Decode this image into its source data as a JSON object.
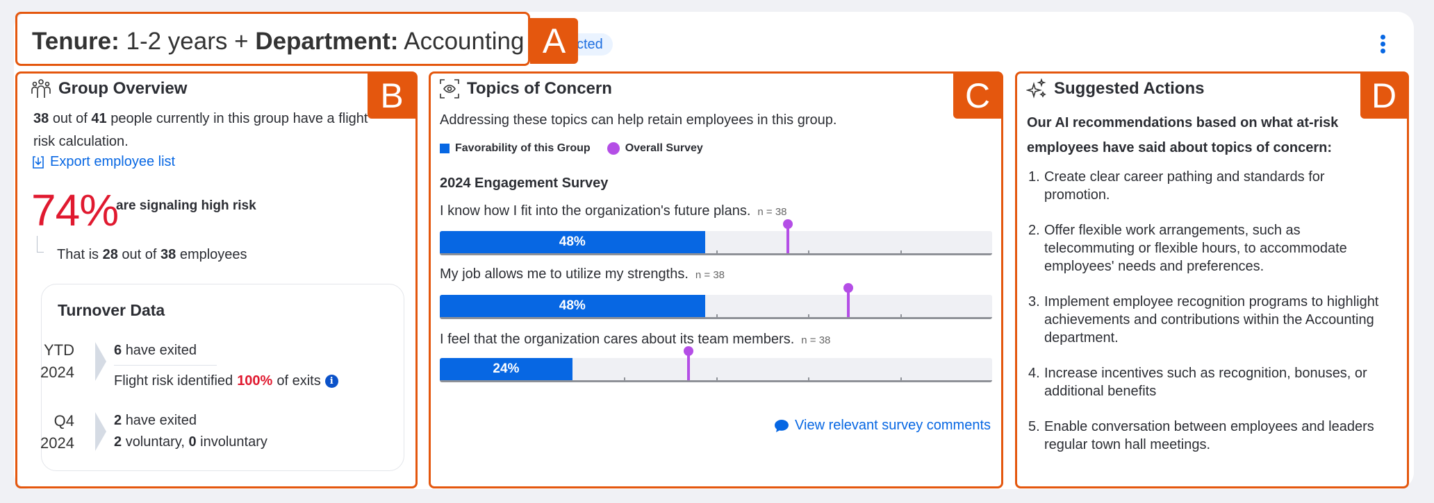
{
  "header": {
    "tenure_label": "Tenure:",
    "tenure_value": "1-2 years",
    "plus": "+",
    "department_label": "Department:",
    "department_value": "Accounting",
    "badge": "cted",
    "more_icon": "kebab-vertical-icon"
  },
  "annotations": {
    "a": "A",
    "b": "B",
    "c": "C",
    "d": "D",
    "color": "#e4570e"
  },
  "group_overview": {
    "title": "Group Overview",
    "icon": "people-group-icon",
    "count_with_calc": "38",
    "out_of": "out of",
    "total": "41",
    "summary_rest": "people currently in this group have a flight",
    "summary_line2": "risk calculation.",
    "export_label": "Export employee list",
    "risk_percent": "74%",
    "risk_text": "are signaling high risk",
    "that_is": "That is",
    "risk_count": "28",
    "risk_out_of": "out of",
    "risk_total": "38",
    "employees": "employees",
    "turnover": {
      "title": "Turnover Data",
      "ytd": {
        "period_a": "YTD",
        "period_b": "2024",
        "exited_count": "6",
        "exited_text": "have exited",
        "flight_prefix": "Flight risk identified",
        "flight_pct": "100%",
        "flight_suffix": "of exits"
      },
      "q4": {
        "period_a": "Q4",
        "period_b": "2024",
        "exited_count": "2",
        "exited_text": "have exited",
        "voluntary": "2",
        "voluntary_text": "voluntary,",
        "involuntary": "0",
        "involuntary_text": "involuntary"
      }
    }
  },
  "topics": {
    "title": "Topics of Concern",
    "icon": "eye-focus-icon",
    "description": "Addressing these topics can help retain employees in this group.",
    "legend": {
      "group": "Favorability of this Group",
      "overall": "Overall Survey"
    },
    "survey_title": "2024 Engagement Survey",
    "items": [
      {
        "question": "I know how I fit into the organization's future plans.",
        "n": "n = 38",
        "group_label": "48%",
        "group_value": 48,
        "overall_value": 63
      },
      {
        "question": "My job allows me to utilize my strengths.",
        "n": "n = 38",
        "group_label": "48%",
        "group_value": 48,
        "overall_value": 74
      },
      {
        "question": "I feel that the organization cares about its team members.",
        "n": "n = 38",
        "group_label": "24%",
        "group_value": 24,
        "overall_value": 45
      }
    ],
    "comments_link": "View relevant survey comments",
    "colors": {
      "group": "#0767e3",
      "overall": "#b44ee6"
    }
  },
  "actions": {
    "title": "Suggested Actions",
    "icon": "sparkles-icon",
    "intro_line1": "Our AI recommendations based on what at-risk",
    "intro_line2": "employees have said about topics of concern:",
    "items": [
      {
        "num": "1.",
        "text": "Create clear career pathing and standards for promotion."
      },
      {
        "num": "2.",
        "text": "Offer flexible work arrangements, such as telecommuting or flexible hours, to accommodate employees' needs and preferences."
      },
      {
        "num": "3.",
        "text": "Implement employee recognition programs to highlight achievements and contributions within the Accounting department."
      },
      {
        "num": "4.",
        "text": "Increase incentives such as recognition, bonuses, or additional benefits"
      },
      {
        "num": "5.",
        "text": "Enable conversation between employees and leaders regular town hall meetings."
      }
    ]
  }
}
